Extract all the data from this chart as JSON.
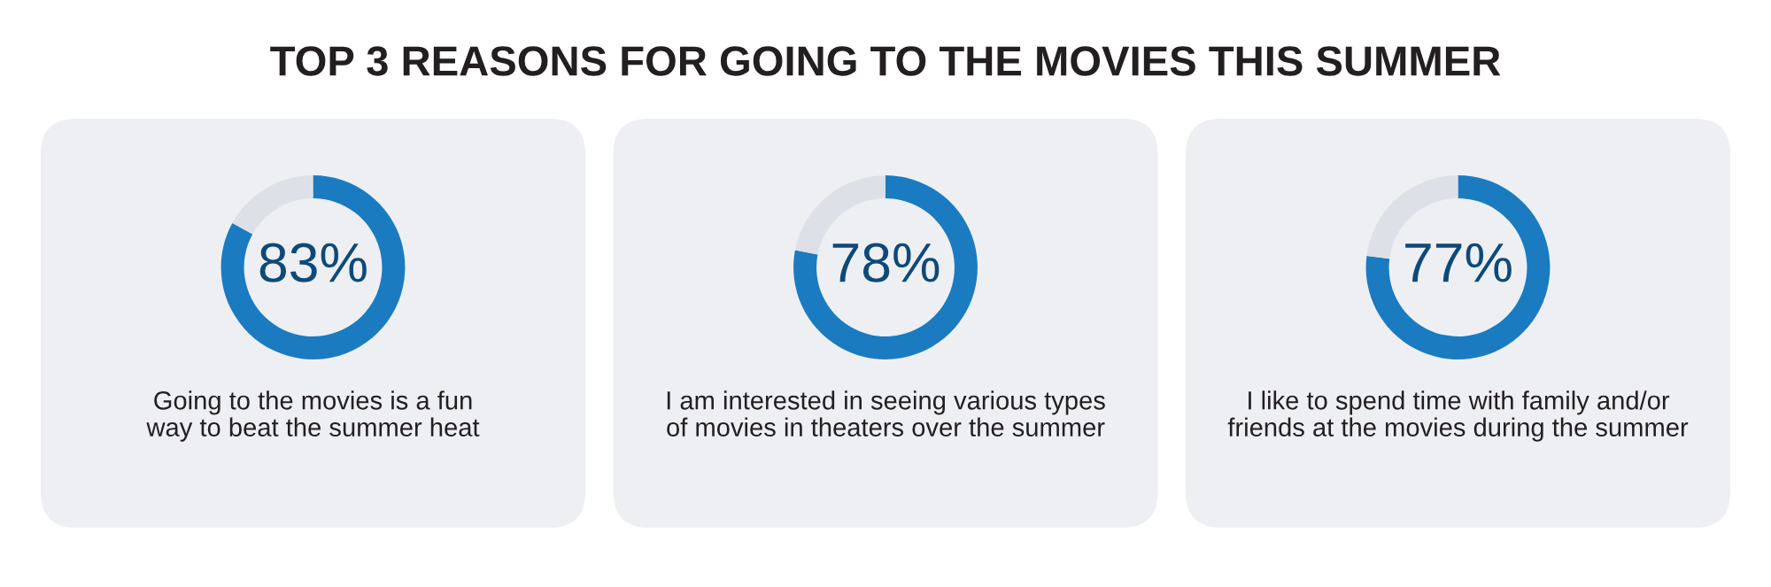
{
  "chart_data": [
    {
      "type": "donut",
      "title": "TOP 3 REASONS FOR GOING TO THE MOVIES THIS SUMMER",
      "categories": [
        "Going to the movies is a fun way to beat the summer heat",
        null
      ],
      "values": [
        83,
        17
      ],
      "colors": [
        "#1a7bc1",
        "#dde1e7"
      ],
      "value_labels": [
        "83%",
        null
      ]
    },
    {
      "type": "donut",
      "categories": [
        "I am interested in seeing various types of movies in theaters over the summer",
        null
      ],
      "values": [
        78,
        22
      ],
      "colors": [
        "#1a7bc1",
        "#dde1e7"
      ],
      "value_labels": [
        "78%",
        null
      ]
    },
    {
      "type": "donut",
      "categories": [
        "I like to spend time with family and/or friends at the movies during the summer",
        null
      ],
      "values": [
        77,
        23
      ],
      "colors": [
        "#1a7bc1",
        "#dde1e7"
      ],
      "value_labels": [
        "77%",
        null
      ]
    }
  ]
}
